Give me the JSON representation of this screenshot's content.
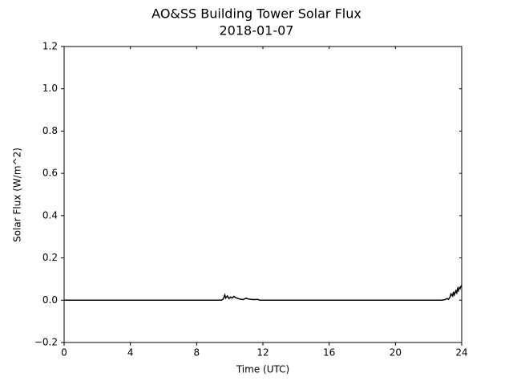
{
  "chart_data": {
    "type": "line",
    "title": "AO&SS Building Tower Solar Flux",
    "subtitle": "2018-01-07",
    "x_label": "Time (UTC)",
    "y_label": "Solar Flux (W/m^2)",
    "xlim": [
      0,
      24
    ],
    "xticks": [
      0,
      4,
      8,
      12,
      16,
      20,
      24
    ],
    "ylim": [
      -0.2,
      1.2
    ],
    "yticks": [
      {
        "value": -0.2,
        "label": "−0.2"
      },
      {
        "value": 0,
        "label": "0.0"
      },
      0.2,
      0.4,
      0.6,
      0.8,
      {
        "value": 1,
        "label": "1.0"
      },
      1.2
    ],
    "grid": false,
    "series": [
      {
        "color": "#000000",
        "x": [
          0,
          2,
          4,
          6,
          8,
          9.5,
          9.6,
          9.7,
          9.75,
          9.85,
          9.95,
          10.05,
          10.15,
          10.25,
          10.35,
          10.5,
          10.65,
          10.8,
          11.0,
          11.1,
          11.3,
          11.5,
          11.7,
          11.8,
          14,
          16,
          18,
          20,
          22,
          22.8,
          23.0,
          23.1,
          23.2,
          23.3,
          23.35,
          23.45,
          23.5,
          23.55,
          23.65,
          23.7,
          23.75,
          23.8,
          23.85,
          23.9,
          23.95,
          24
        ],
        "values": [
          0,
          0,
          0,
          0,
          0,
          0,
          0.005,
          0.025,
          0.01,
          0.02,
          0.008,
          0.015,
          0.01,
          0.018,
          0.012,
          0.008,
          0.005,
          0.003,
          0.01,
          0.006,
          0.004,
          0.003,
          0.004,
          0,
          0,
          0,
          0,
          0,
          0,
          0,
          0.003,
          0.008,
          0.004,
          0.015,
          0.03,
          0.02,
          0.04,
          0.025,
          0.045,
          0.035,
          0.055,
          0.045,
          0.06,
          0.055,
          0.065,
          0.07
        ]
      }
    ]
  }
}
